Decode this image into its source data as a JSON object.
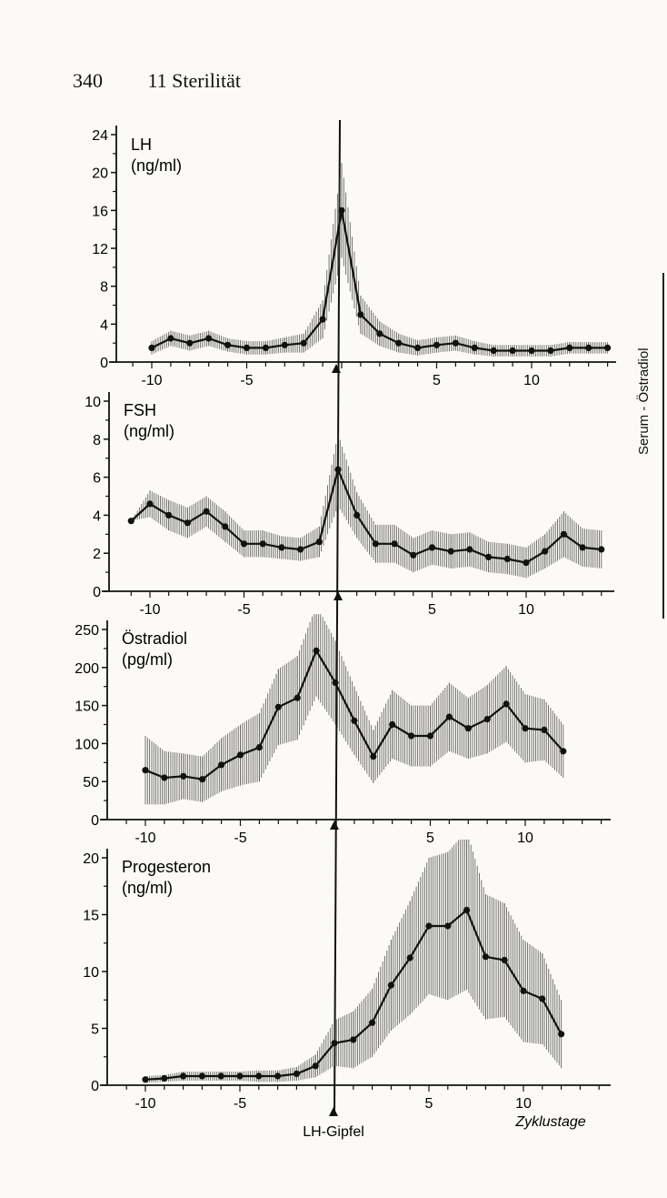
{
  "page": {
    "page_number": "340",
    "chapter": "11 Sterilität",
    "side_label": "Serum - Östradiol"
  },
  "chart_data": [
    {
      "type": "line",
      "title": "LH",
      "unit": "(ng/ml)",
      "x": [
        -10,
        -9,
        -8,
        -7,
        -6,
        -5,
        -4,
        -3,
        -2,
        -1,
        0,
        1,
        2,
        3,
        4,
        5,
        6,
        7,
        8,
        9,
        10,
        11,
        12,
        13,
        14
      ],
      "y": [
        1.5,
        2.5,
        2,
        2.5,
        1.8,
        1.5,
        1.5,
        1.8,
        2,
        4.5,
        16,
        5,
        3,
        2,
        1.5,
        1.8,
        2,
        1.5,
        1.2,
        1.2,
        1.2,
        1.2,
        1.5,
        1.5,
        1.5
      ],
      "err": [
        0.7,
        0.8,
        0.8,
        0.8,
        0.7,
        0.7,
        0.7,
        0.8,
        1,
        2,
        5,
        2,
        1.3,
        1,
        0.8,
        0.8,
        0.8,
        0.7,
        0.6,
        0.6,
        0.6,
        0.6,
        0.6,
        0.6,
        0.6
      ],
      "ylim": [
        0,
        24
      ],
      "yticks": [
        0,
        4,
        8,
        12,
        16,
        20,
        24
      ],
      "xticks": [
        -10,
        -5,
        5,
        10
      ],
      "xlim": [
        -11,
        15
      ]
    },
    {
      "type": "line",
      "title": "FSH",
      "unit": "(ng/ml)",
      "x": [
        -11,
        -10,
        -9,
        -8,
        -7,
        -6,
        -5,
        -4,
        -3,
        -2,
        -1,
        0,
        1,
        2,
        3,
        4,
        5,
        6,
        7,
        8,
        9,
        10,
        11,
        12,
        13,
        14
      ],
      "y": [
        3.7,
        4.6,
        4,
        3.6,
        4.2,
        3.4,
        2.5,
        2.5,
        2.3,
        2.2,
        2.6,
        6.4,
        4,
        2.5,
        2.5,
        1.9,
        2.3,
        2.1,
        2.2,
        1.8,
        1.7,
        1.5,
        2.1,
        3,
        2.3,
        2.2
      ],
      "err": [
        0,
        0.7,
        0.8,
        0.8,
        0.8,
        0.8,
        0.7,
        0.7,
        0.6,
        0.6,
        0.8,
        1.9,
        1.2,
        1,
        1,
        0.9,
        0.9,
        0.9,
        0.9,
        0.8,
        0.8,
        0.8,
        0.9,
        1.2,
        1,
        1
      ],
      "ylim": [
        0,
        10
      ],
      "yticks": [
        0,
        2,
        4,
        6,
        8,
        10
      ],
      "xticks": [
        -10,
        -5,
        5,
        10
      ],
      "xlim": [
        -11,
        15
      ]
    },
    {
      "type": "line",
      "title": "Östradiol",
      "unit": "(pg/ml)",
      "x": [
        -10,
        -9,
        -8,
        -7,
        -6,
        -5,
        -4,
        -3,
        -2,
        -1,
        0,
        1,
        2,
        3,
        4,
        5,
        6,
        7,
        8,
        9,
        10,
        11,
        12
      ],
      "y": [
        65,
        55,
        57,
        53,
        72,
        85,
        95,
        148,
        160,
        222,
        180,
        130,
        83,
        125,
        110,
        110,
        135,
        120,
        132,
        152,
        120,
        118,
        90
      ],
      "err": [
        45,
        35,
        30,
        30,
        35,
        40,
        45,
        50,
        55,
        60,
        55,
        45,
        35,
        45,
        40,
        40,
        45,
        40,
        45,
        50,
        45,
        40,
        35
      ],
      "ylim": [
        0,
        250
      ],
      "yticks": [
        0,
        50,
        100,
        150,
        200,
        250
      ],
      "xticks": [
        -10,
        -5,
        5,
        10
      ],
      "xlim": [
        -11,
        15
      ]
    },
    {
      "type": "line",
      "title": "Progesteron",
      "unit": "(ng/ml)",
      "x": [
        -10,
        -9,
        -8,
        -7,
        -6,
        -5,
        -4,
        -3,
        -2,
        -1,
        0,
        1,
        2,
        3,
        4,
        5,
        6,
        7,
        8,
        9,
        10,
        11,
        12
      ],
      "y": [
        0.5,
        0.6,
        0.8,
        0.8,
        0.8,
        0.8,
        0.8,
        0.8,
        1,
        1.7,
        3.7,
        4,
        5.5,
        8.8,
        11.2,
        14,
        14,
        15.4,
        11.3,
        11,
        8.3,
        7.6,
        4.5
      ],
      "err": [
        0.3,
        0.3,
        0.4,
        0.4,
        0.4,
        0.4,
        0.5,
        0.5,
        0.6,
        1,
        2,
        2.5,
        3,
        4,
        5,
        6,
        6.5,
        7,
        5.5,
        5,
        4.5,
        4,
        3
      ],
      "ylim": [
        0,
        20
      ],
      "yticks": [
        0,
        5,
        10,
        15,
        20
      ],
      "xticks": [
        -10,
        -5,
        5,
        10
      ],
      "xlim": [
        -11,
        15
      ],
      "xlabel": "Zyklustage",
      "marker_label": "LH-Gipfel"
    }
  ]
}
